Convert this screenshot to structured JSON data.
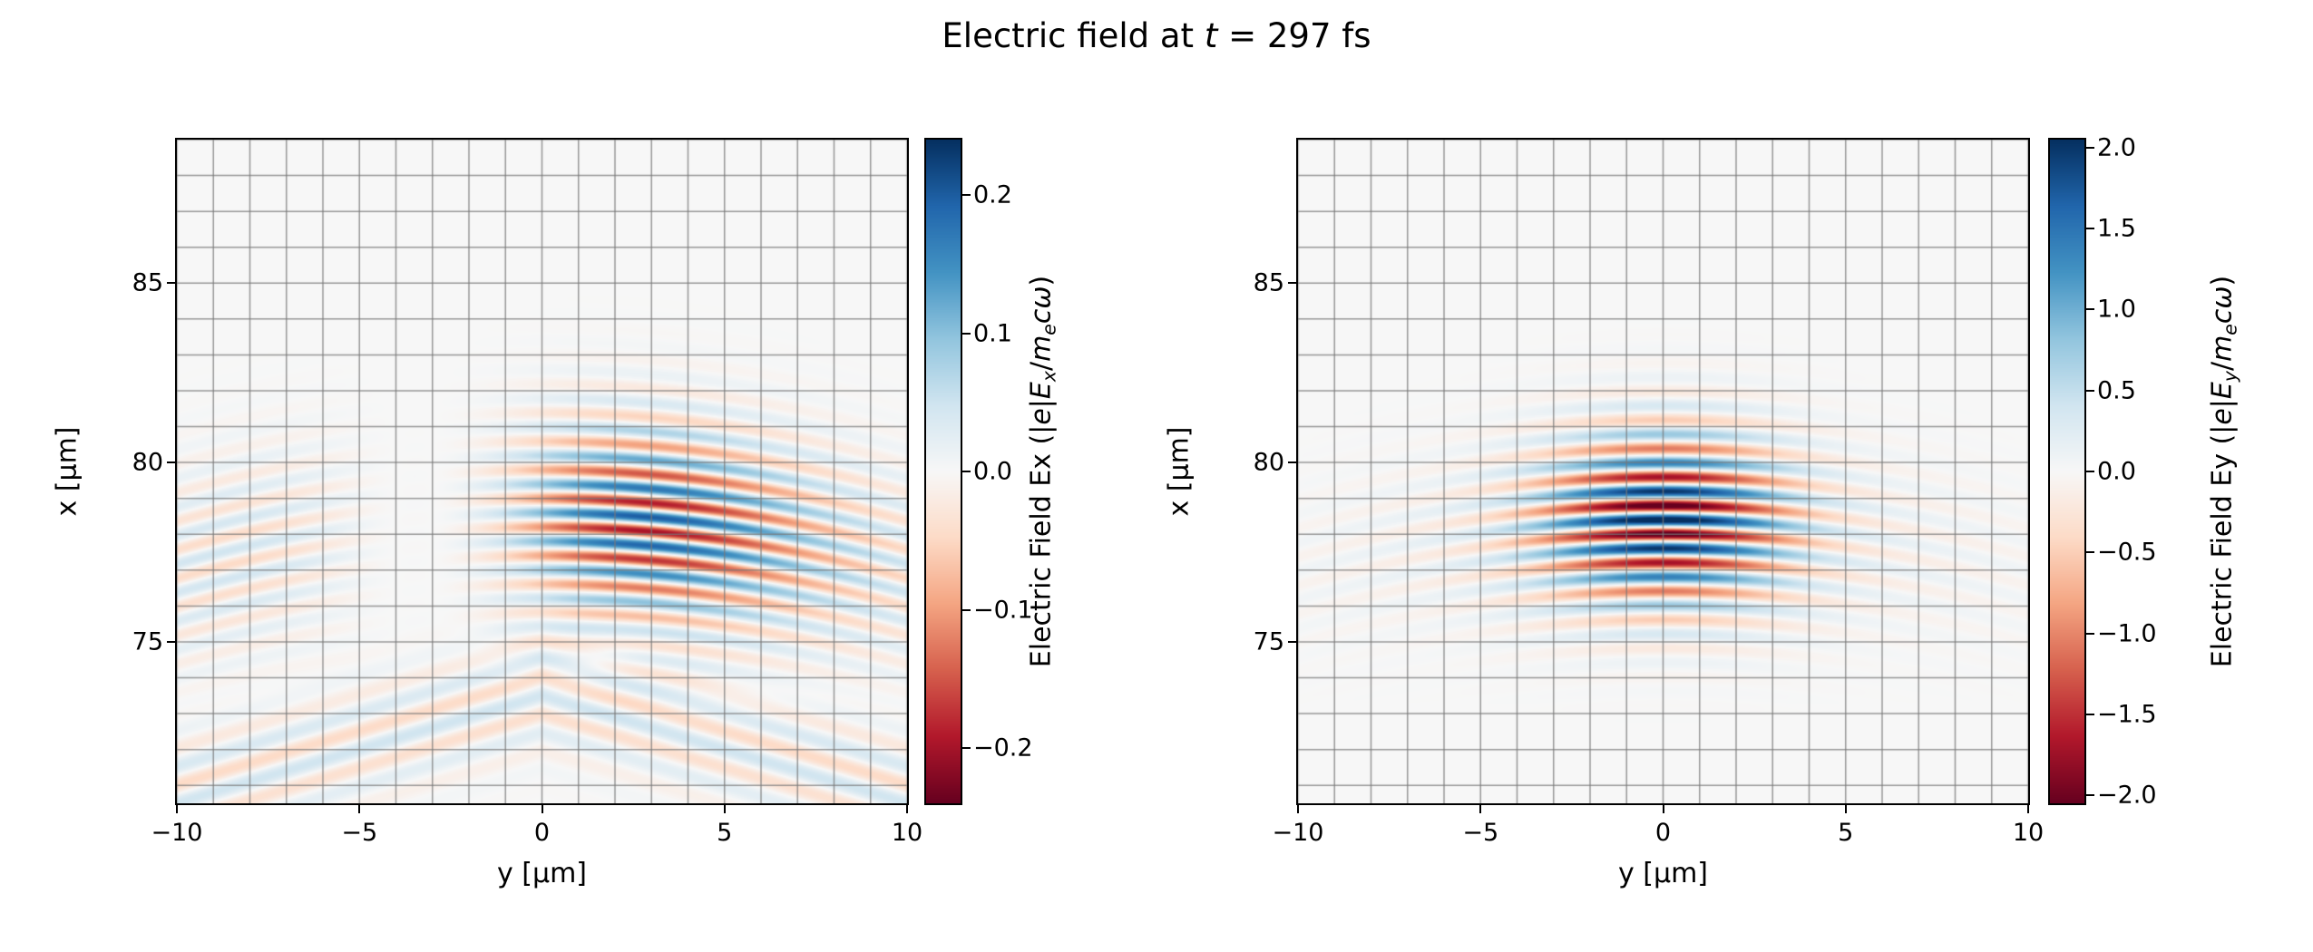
{
  "figure": {
    "background": "#ffffff",
    "title_parts": [
      {
        "t": "Electric field at "
      },
      {
        "t": "t",
        "i": true
      },
      {
        "t": " = 297 fs"
      }
    ]
  },
  "colormap_stops": [
    "#67001f",
    "#b2182b",
    "#d6604d",
    "#f4a582",
    "#fddbc7",
    "#f7f7f7",
    "#d1e5f0",
    "#92c5de",
    "#4393c3",
    "#2166ac",
    "#053061"
  ],
  "grid_color": "rgba(120,120,120,0.75)",
  "chart_data": [
    {
      "type": "heatmap",
      "name": "Ex",
      "title": "",
      "xlabel": "y [μm]",
      "ylabel": "x [μm]",
      "x_range": [
        -10,
        10
      ],
      "y_range": [
        70.5,
        89.0
      ],
      "x_ticks": [
        -10,
        -5,
        0,
        5,
        10
      ],
      "x_tick_labels": [
        "−10",
        "−5",
        "0",
        "5",
        "10"
      ],
      "y_ticks": [
        75,
        80,
        85
      ],
      "y_tick_labels": [
        "75",
        "80",
        "85"
      ],
      "grid_step": 1,
      "grid": true,
      "colorbar": {
        "vmin": -0.24,
        "vmax": 0.24,
        "ticks": [
          0.2,
          0.1,
          0.0,
          -0.1,
          -0.2
        ],
        "tick_labels": [
          "0.2",
          "0.1",
          "0.0",
          "−0.1",
          "−0.2"
        ],
        "label_parts": [
          {
            "t": "Electric Field Ex (|"
          },
          {
            "t": "e",
            "i": true
          },
          {
            "t": "|"
          },
          {
            "t": "E",
            "i": true
          },
          {
            "t": "x",
            "i": true,
            "sub": true
          },
          {
            "t": "/"
          },
          {
            "t": "m",
            "i": true
          },
          {
            "t": "e",
            "i": true,
            "sub": true
          },
          {
            "t": "c",
            "i": true
          },
          {
            "t": "ω",
            "i": true
          },
          {
            "t": ")"
          }
        ]
      },
      "field": {
        "component": "Ex",
        "amplitude": 0.24,
        "wavelength": 0.8,
        "pulse_center_x": 78.4,
        "pulse_sigma_x": 2.6,
        "lobe_frac": 0.65,
        "lobe_scale": 3.0,
        "lobe_sigma": 4.5,
        "wide_frac": 0.45,
        "wide_sigma": 11.0,
        "curvature_R": 35,
        "arc_amp_frac": 0.2,
        "arc_center_x": 73.6,
        "arc_slope": 0.28,
        "arc_sigma": 1.5,
        "arc_wavelength": 1.05
      }
    },
    {
      "type": "heatmap",
      "name": "Ey",
      "title": "",
      "xlabel": "y [μm]",
      "ylabel": "x [μm]",
      "x_range": [
        -10,
        10
      ],
      "y_range": [
        70.5,
        89.0
      ],
      "x_ticks": [
        -10,
        -5,
        0,
        5,
        10
      ],
      "x_tick_labels": [
        "−10",
        "−5",
        "0",
        "5",
        "10"
      ],
      "y_ticks": [
        75,
        80,
        85
      ],
      "y_tick_labels": [
        "75",
        "80",
        "85"
      ],
      "grid_step": 1,
      "grid": true,
      "colorbar": {
        "vmin": -2.05,
        "vmax": 2.05,
        "ticks": [
          2.0,
          1.5,
          1.0,
          0.5,
          0.0,
          -0.5,
          -1.0,
          -1.5,
          -2.0
        ],
        "tick_labels": [
          "2.0",
          "1.5",
          "1.0",
          "0.5",
          "0.0",
          "−0.5",
          "−1.0",
          "−1.5",
          "−2.0"
        ],
        "label_parts": [
          {
            "t": "Electric Field Ey (|"
          },
          {
            "t": "e",
            "i": true
          },
          {
            "t": "|"
          },
          {
            "t": "E",
            "i": true
          },
          {
            "t": "y",
            "i": true,
            "sub": true
          },
          {
            "t": "/"
          },
          {
            "t": "m",
            "i": true
          },
          {
            "t": "e",
            "i": true,
            "sub": true
          },
          {
            "t": "c",
            "i": true
          },
          {
            "t": "ω",
            "i": true
          },
          {
            "t": ")"
          }
        ]
      },
      "field": {
        "component": "Ey",
        "amplitude": 2.0,
        "wavelength": 0.8,
        "pulse_center_x": 78.4,
        "pulse_sigma_x": 2.3,
        "waist_y": 3.2,
        "wide_frac": 0.13,
        "wide_sigma": 9.0,
        "curvature_R": 35
      }
    }
  ]
}
